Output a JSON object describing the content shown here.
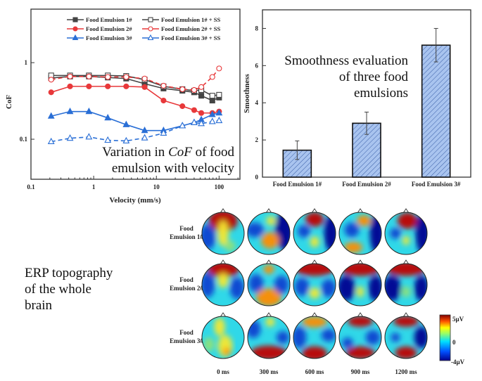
{
  "chart_data": [
    {
      "type": "line",
      "xscale": "log",
      "yscale": "log",
      "xlabel": "Velocity (mm/s)",
      "ylabel": "CoF",
      "xlim": [
        0.1,
        215
      ],
      "ylim": [
        0.03,
        5
      ],
      "xticks": [
        "0.1",
        "1",
        "10",
        "100"
      ],
      "yticks": [
        "0.1",
        "1"
      ],
      "legend_position": "top-right",
      "annotation": {
        "pre": "Variation in ",
        "italic": "CoF",
        "post": " of food",
        "line2": "emulsion with velocity"
      },
      "x": [
        0.21,
        0.42,
        0.84,
        1.68,
        3.3,
        6.5,
        13,
        26,
        40,
        52,
        78,
        100
      ],
      "series": [
        {
          "name": "Food Emulsion 1#",
          "color": "#444444",
          "marker": "square",
          "filled": true,
          "dashed": false,
          "values": [
            0.63,
            0.66,
            0.66,
            0.64,
            0.62,
            0.53,
            0.46,
            0.43,
            0.41,
            0.37,
            0.32,
            0.35
          ]
        },
        {
          "name": "Food Emulsion 1# + SS",
          "color": "#444444",
          "marker": "square",
          "filled": false,
          "dashed": false,
          "values": [
            0.68,
            0.68,
            0.68,
            0.68,
            0.67,
            0.6,
            0.49,
            0.45,
            0.43,
            0.44,
            0.37,
            0.38
          ]
        },
        {
          "name": "Food Emulsion 2#",
          "color": "#e8383a",
          "marker": "circle",
          "filled": true,
          "dashed": false,
          "values": [
            0.41,
            0.49,
            0.49,
            0.49,
            0.49,
            0.48,
            0.32,
            0.27,
            0.24,
            0.22,
            0.22,
            0.23
          ]
        },
        {
          "name": "Food Emulsion 2# + SS",
          "color": "#e8383a",
          "marker": "circle",
          "filled": false,
          "dashed": true,
          "values": [
            0.6,
            0.66,
            0.66,
            0.65,
            0.65,
            0.62,
            0.5,
            0.45,
            0.44,
            0.48,
            0.65,
            0.84
          ]
        },
        {
          "name": "Food Emulsion 3#",
          "color": "#2a6fd6",
          "marker": "triangle",
          "filled": true,
          "dashed": false,
          "values": [
            0.2,
            0.23,
            0.23,
            0.19,
            0.155,
            0.13,
            0.13,
            0.15,
            0.165,
            0.18,
            0.21,
            0.22
          ]
        },
        {
          "name": "Food Emulsion 3# + SS",
          "color": "#2a6fd6",
          "marker": "triangle",
          "filled": false,
          "dashed": true,
          "values": [
            0.093,
            0.103,
            0.107,
            0.097,
            0.095,
            0.104,
            0.12,
            0.15,
            0.165,
            0.16,
            0.17,
            0.175
          ]
        }
      ]
    },
    {
      "type": "bar",
      "ylabel": "Smoothness",
      "xlabel": "",
      "ylim": [
        0,
        9
      ],
      "yticks": [
        "0",
        "2",
        "4",
        "6",
        "8"
      ],
      "categories": [
        "Food Emulsion 1#",
        "Food Emulsion 2#",
        "Food Emulsion 3#"
      ],
      "values": [
        1.45,
        2.9,
        7.1
      ],
      "errors": [
        0.5,
        0.6,
        0.9
      ],
      "bar_color": "#a9c4ef",
      "annotation": [
        "Smoothness evaluation",
        "of three food",
        "emulsions"
      ]
    },
    {
      "type": "heatmap",
      "title_lines": [
        "ERP topography",
        "of the whole",
        "brain"
      ],
      "rows": [
        [
          "Food",
          "Emulsion 1#"
        ],
        [
          "Food",
          "Emulsion 2#"
        ],
        [
          "Food",
          "Emulsion 3#"
        ]
      ],
      "columns": [
        "0 ms",
        "300 ms",
        "600 ms",
        "900 ms",
        "1200 ms"
      ],
      "colorbar": {
        "max_label": "5μV",
        "mid_label": "0",
        "min_label": "-4μV",
        "range": [
          -4,
          5
        ]
      }
    }
  ]
}
